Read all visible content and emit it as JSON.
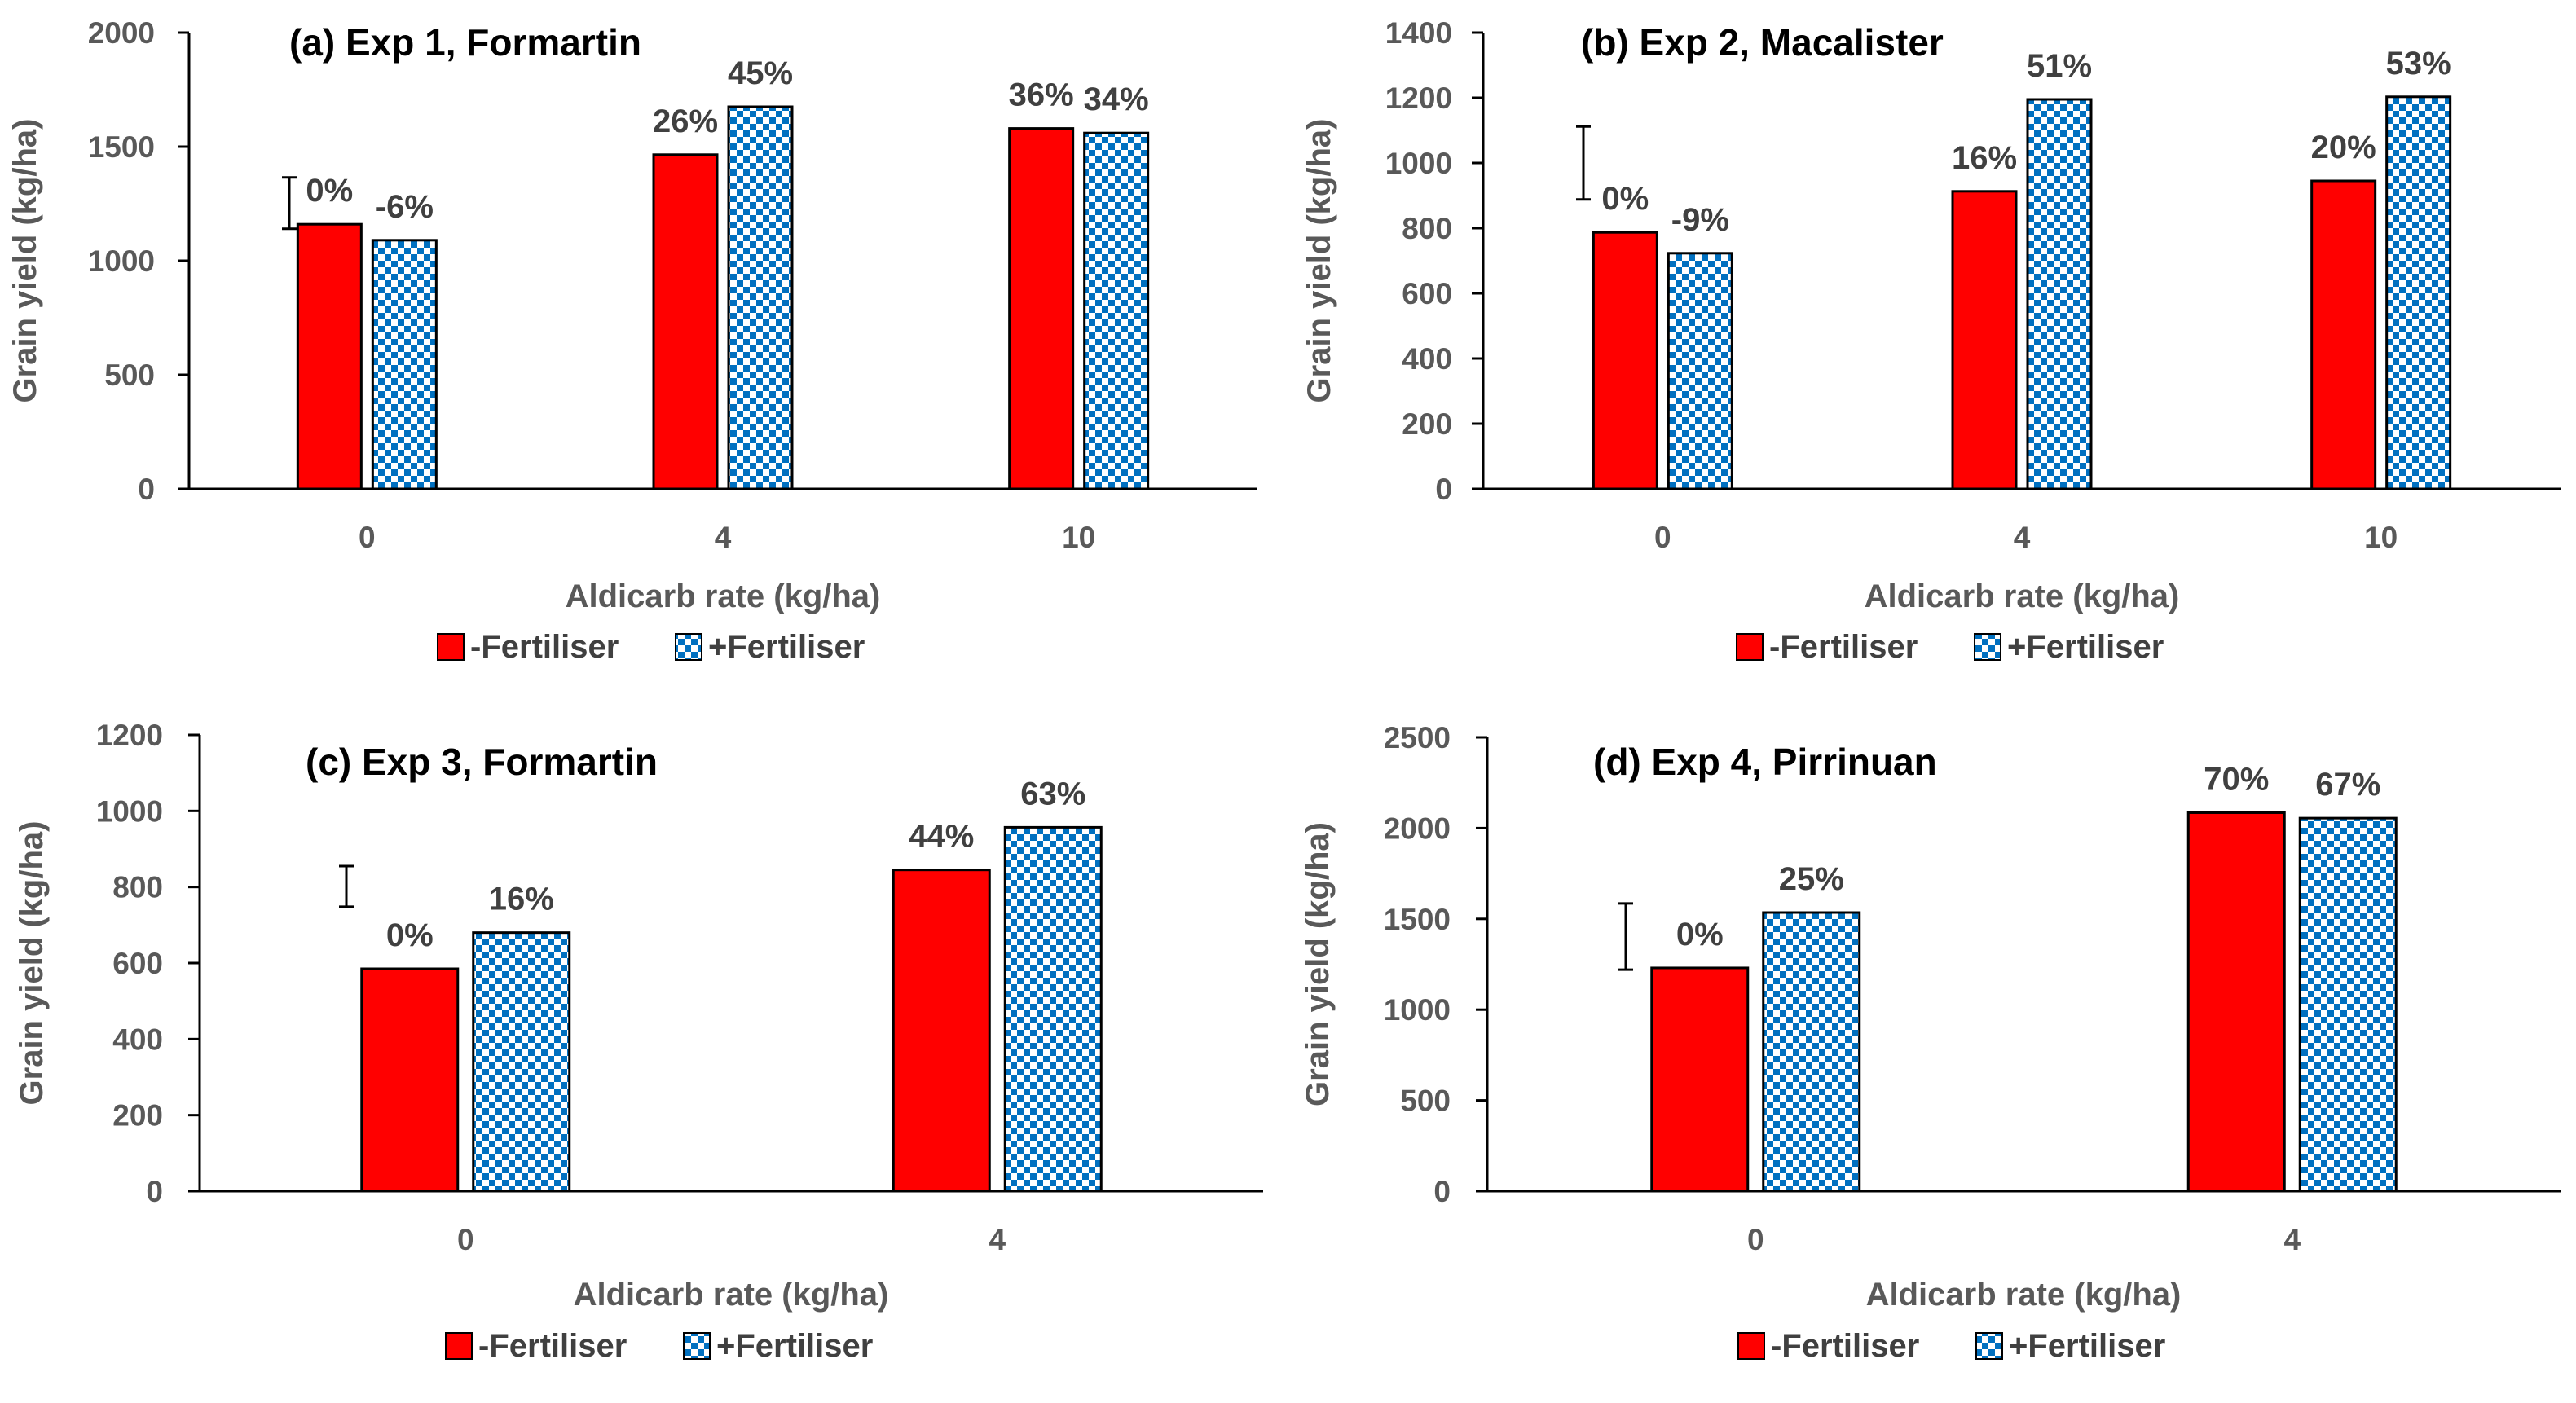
{
  "colors": {
    "no_fert": "#ff0000",
    "fert_blue": "#0070c0",
    "fert_white": "#ffffff",
    "axis": "#000000",
    "tick_text": "#595959"
  },
  "legend": {
    "no_fert_label": "-Fertiliser",
    "fert_label": "+Fertiliser"
  },
  "chart_data": [
    {
      "type": "bar",
      "title": "(a) Exp 1, Formartin",
      "xlabel": "Aldicarb rate (kg/ha)",
      "ylabel": "Grain yield (kg/ha)",
      "ylim": [
        0,
        2000
      ],
      "yticks": [
        0,
        500,
        1000,
        1500,
        2000
      ],
      "categories": [
        "0",
        "4",
        "10"
      ],
      "series": [
        {
          "name": "-Fertiliser",
          "values": [
            1160,
            1465,
            1580
          ],
          "labels": [
            "0%",
            "26%",
            "36%"
          ]
        },
        {
          "name": "+Fertiliser",
          "values": [
            1090,
            1675,
            1560
          ],
          "labels": [
            "-6%",
            "45%",
            "34%"
          ]
        }
      ],
      "lsd_bar": [
        1140,
        1365
      ],
      "legend_position": "bottom"
    },
    {
      "type": "bar",
      "title": "(b) Exp 2, Macalister",
      "xlabel": "Aldicarb rate (kg/ha)",
      "ylabel": "Grain yield (kg/ha)",
      "ylim": [
        0,
        1400
      ],
      "yticks": [
        0,
        200,
        400,
        600,
        800,
        1000,
        1200,
        1400
      ],
      "categories": [
        "0",
        "4",
        "10"
      ],
      "series": [
        {
          "name": "-Fertiliser",
          "values": [
            787,
            913,
            945
          ],
          "labels": [
            "0%",
            "16%",
            "20%"
          ]
        },
        {
          "name": "+Fertiliser",
          "values": [
            723,
            1195,
            1203
          ],
          "labels": [
            "-9%",
            "51%",
            "53%"
          ]
        }
      ],
      "lsd_bar": [
        888,
        1112
      ],
      "legend_position": "bottom"
    },
    {
      "type": "bar",
      "title": "(c) Exp 3,  Formartin",
      "xlabel": "Aldicarb rate (kg/ha)",
      "ylabel": "Grain yield (kg/ha)",
      "ylim": [
        0,
        1200
      ],
      "yticks": [
        0,
        200,
        400,
        600,
        800,
        1000,
        1200
      ],
      "categories": [
        "0",
        "4"
      ],
      "series": [
        {
          "name": "-Fertiliser",
          "values": [
            585,
            845
          ],
          "labels": [
            "0%",
            "44%"
          ]
        },
        {
          "name": "+Fertiliser",
          "values": [
            680,
            957
          ],
          "labels": [
            "16%",
            "63%"
          ]
        }
      ],
      "lsd_bar": [
        748,
        855
      ],
      "legend_position": "bottom"
    },
    {
      "type": "bar",
      "title": "(d) Exp 4,  Pirrinuan",
      "xlabel": "Aldicarb rate (kg/ha)",
      "ylabel": "Grain yield (kg/ha)",
      "ylim": [
        0,
        2500
      ],
      "yticks": [
        0,
        500,
        1000,
        1500,
        2000,
        2500
      ],
      "categories": [
        "0",
        "4"
      ],
      "series": [
        {
          "name": "-Fertiliser",
          "values": [
            1230,
            2085
          ],
          "labels": [
            "0%",
            "70%"
          ]
        },
        {
          "name": "+Fertiliser",
          "values": [
            1535,
            2055
          ],
          "labels": [
            "25%",
            "67%"
          ]
        }
      ],
      "lsd_bar": [
        1220,
        1585
      ],
      "legend_position": "bottom"
    }
  ]
}
